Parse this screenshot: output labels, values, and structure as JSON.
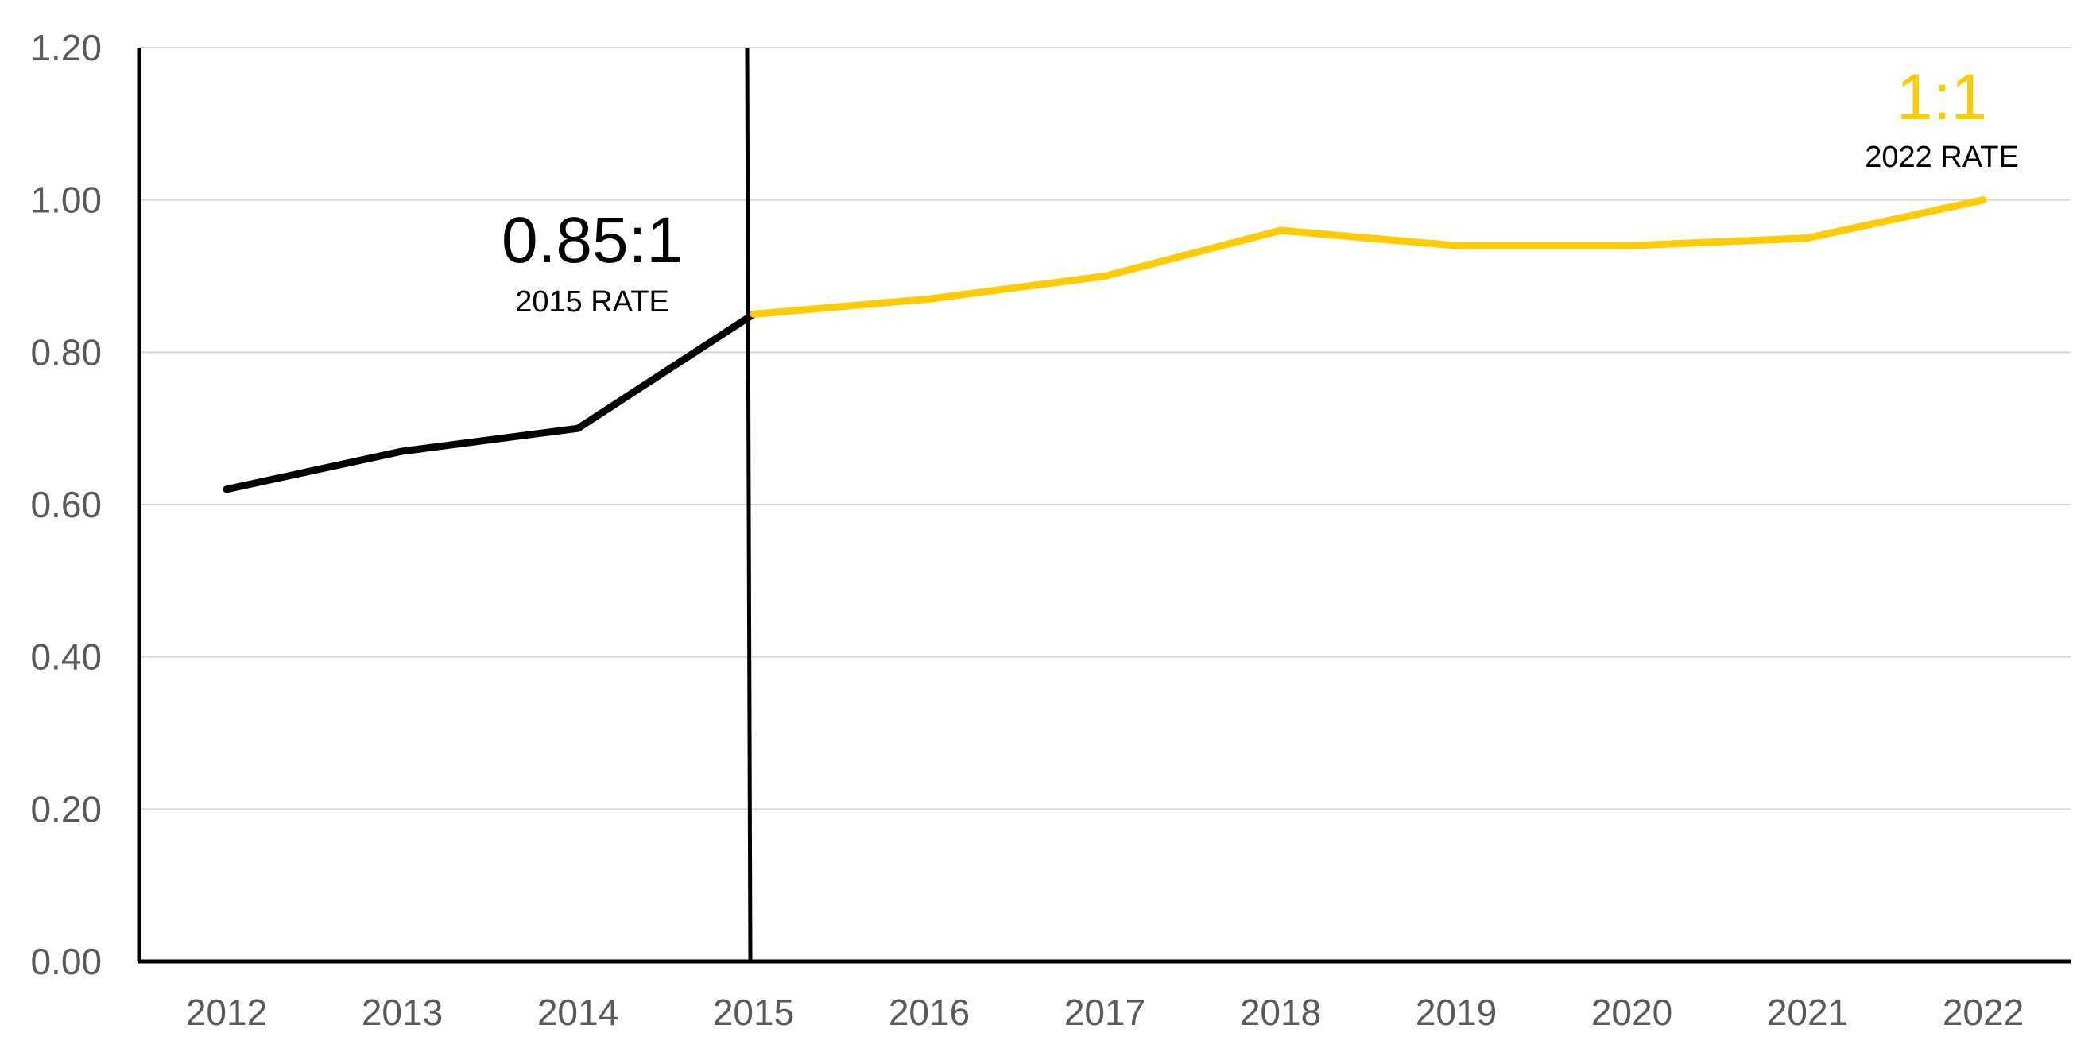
{
  "chart_data": {
    "type": "line",
    "title": "",
    "xlabel": "",
    "ylabel": "",
    "categories": [
      "2012",
      "2013",
      "2014",
      "2015",
      "2016",
      "2017",
      "2018",
      "2019",
      "2020",
      "2021",
      "2022"
    ],
    "ylim": [
      0,
      1.2
    ],
    "y_ticks": [
      "0.00",
      "0.20",
      "0.40",
      "0.60",
      "0.80",
      "1.00",
      "1.20"
    ],
    "y_tick_values": [
      0,
      0.2,
      0.4,
      0.6,
      0.8,
      1.0,
      1.2
    ],
    "grid": true,
    "legend": "none",
    "series": [
      {
        "color": "#000000",
        "x": [
          "2012",
          "2013",
          "2014",
          "2015"
        ],
        "values": [
          0.62,
          0.67,
          0.7,
          0.85
        ]
      },
      {
        "color": "#FFCC00",
        "x": [
          "2015",
          "2016",
          "2017",
          "2018",
          "2019",
          "2020",
          "2021",
          "2022"
        ],
        "values": [
          0.85,
          0.87,
          0.9,
          0.96,
          0.94,
          0.94,
          0.95,
          1.0
        ]
      }
    ],
    "reference_line": {
      "x": "2015",
      "color": "#000000"
    },
    "annotations": [
      {
        "value_text": "0.85:1",
        "sub_text": "2015 RATE",
        "x": "2015",
        "color": "#000000"
      },
      {
        "value_text": "1:1",
        "sub_text": "2022 RATE",
        "x": "2022",
        "color": "#FFCC00"
      }
    ]
  }
}
